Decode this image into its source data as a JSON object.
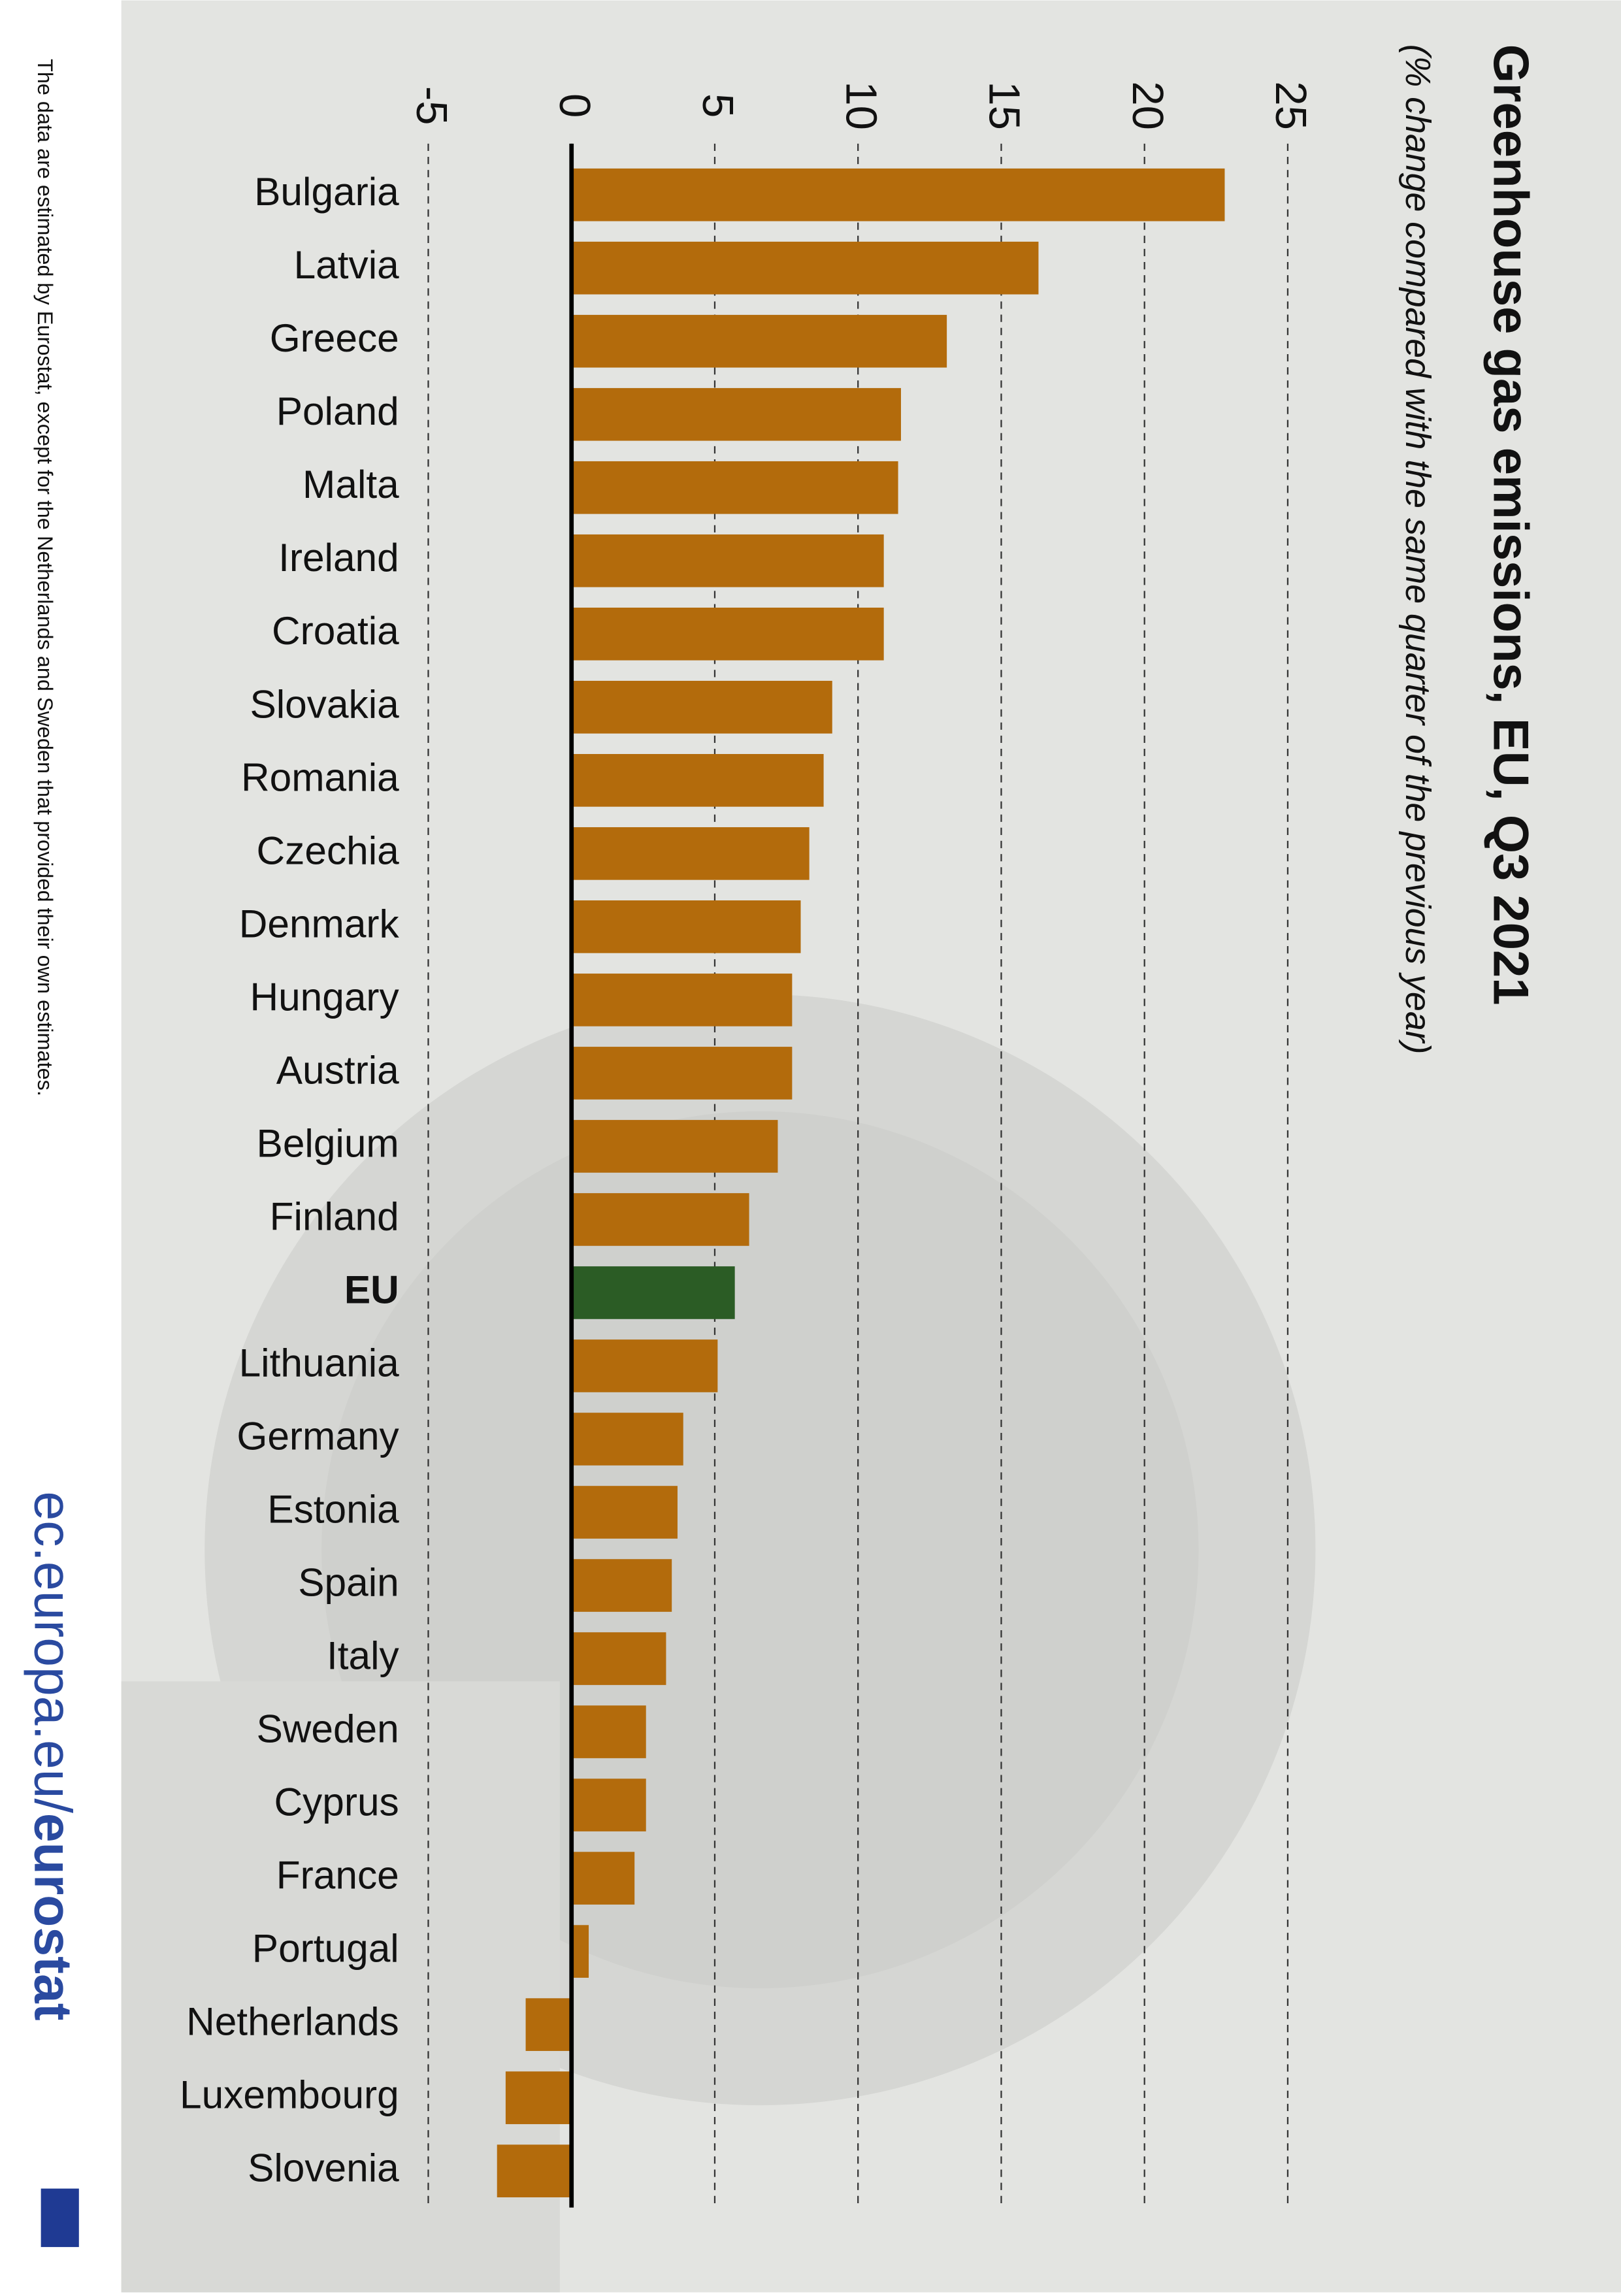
{
  "chart_data": {
    "type": "hbar",
    "title": "Greenhouse gas emissions, EU, Q3 2021",
    "subtitle": "(% change compared with the same quarter of the previous year)",
    "categories": [
      "Bulgaria",
      "Latvia",
      "Greece",
      "Poland",
      "Malta",
      "Ireland",
      "Croatia",
      "Slovakia",
      "Romania",
      "Czechia",
      "Denmark",
      "Hungary",
      "Austria",
      "Belgium",
      "Finland",
      "EU",
      "Lithuania",
      "Germany",
      "Estonia",
      "Spain",
      "Italy",
      "Sweden",
      "Cyprus",
      "France",
      "Portugal",
      "Netherlands",
      "Luxembourg",
      "Slovenia"
    ],
    "values": [
      22.8,
      16.3,
      13.1,
      11.5,
      11.4,
      10.9,
      10.9,
      9.1,
      8.8,
      8.3,
      8.0,
      7.7,
      7.7,
      7.2,
      6.2,
      5.7,
      5.1,
      3.9,
      3.7,
      3.5,
      3.3,
      2.6,
      2.6,
      2.2,
      0.6,
      -1.6,
      -2.3,
      -2.6
    ],
    "colors": [
      "#b36b0c",
      "#b36b0c",
      "#b36b0c",
      "#b36b0c",
      "#b36b0c",
      "#b36b0c",
      "#b36b0c",
      "#b36b0c",
      "#b36b0c",
      "#b36b0c",
      "#b36b0c",
      "#b36b0c",
      "#b36b0c",
      "#b36b0c",
      "#b36b0c",
      "#2b5c25",
      "#b36b0c",
      "#b36b0c",
      "#b36b0c",
      "#b36b0c",
      "#b36b0c",
      "#b36b0c",
      "#b36b0c",
      "#b36b0c",
      "#b36b0c",
      "#b36b0c",
      "#b36b0c",
      "#b36b0c"
    ],
    "xlim": [
      -5,
      25
    ],
    "xticks": [
      -5,
      0,
      5,
      10,
      15,
      20,
      25
    ],
    "grid": true,
    "footnote": "The data are estimated by Eurostat, except for the Netherlands and Sweden that provided their own estimates.",
    "source": "ec.europa.eu/",
    "source_brand": "eurostat"
  }
}
